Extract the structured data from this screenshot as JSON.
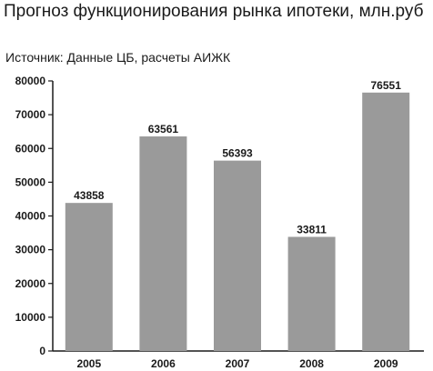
{
  "title": "Прогноз функционирования рынка ипотеки, млн.руб",
  "subtitle": "Источник: Данные ЦБ, расчеты АИЖК",
  "colors": {
    "bar": "#9a9a9a",
    "axis": "#1a1a1a"
  },
  "chart_data": {
    "type": "bar",
    "title": "Прогноз функционирования рынка ипотеки, млн.руб",
    "subtitle": "Источник: Данные ЦБ, расчеты АИЖК",
    "categories": [
      "2005",
      "2006",
      "2007",
      "2008",
      "2009"
    ],
    "values": [
      43858,
      63561,
      56393,
      33811,
      76551
    ],
    "data_labels": [
      "43858",
      "63561",
      "56393",
      "33811",
      "76551"
    ],
    "yticks": [
      "0",
      "10000",
      "20000",
      "30000",
      "40000",
      "50000",
      "60000",
      "70000",
      "80000"
    ],
    "ylim": [
      0,
      80000
    ],
    "xlabel": "",
    "ylabel": "",
    "grid": false,
    "legend": "none"
  }
}
